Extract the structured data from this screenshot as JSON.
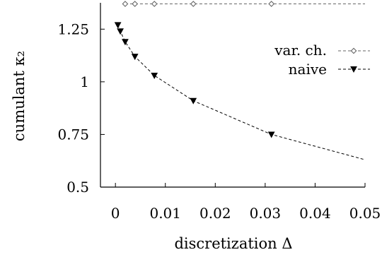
{
  "chart_data": {
    "type": "line",
    "xlabel": "discretization Δ",
    "ylabel": "cumulant κ₂",
    "xlim": [
      -0.003,
      0.05
    ],
    "ylim": [
      0.5,
      1.375
    ],
    "xticks": [
      0,
      0.01,
      0.02,
      0.03,
      0.04,
      0.05
    ],
    "xtick_labels": [
      "0",
      "0.01",
      "0.02",
      "0.03",
      "0.04",
      "0.05"
    ],
    "yticks": [
      0.5,
      0.75,
      1,
      1.25
    ],
    "ytick_labels": [
      "0.5",
      "0.75",
      "1",
      "1.25"
    ],
    "legend_position": "top-right",
    "grid": false,
    "series": [
      {
        "name": "var. ch.",
        "marker": "open-diamond",
        "color": "#666666",
        "points": [
          [
            0.00195,
            1.37
          ],
          [
            0.0039,
            1.37
          ],
          [
            0.0078,
            1.37
          ],
          [
            0.0156,
            1.37
          ],
          [
            0.03125,
            1.37
          ]
        ],
        "line": [
          [
            0.00195,
            1.37
          ],
          [
            0.05,
            1.37
          ]
        ]
      },
      {
        "name": "naive",
        "marker": "filled-down-triangle",
        "color": "#000000",
        "points": [
          [
            0.00049,
            1.27
          ],
          [
            0.00098,
            1.24
          ],
          [
            0.00195,
            1.19
          ],
          [
            0.0039,
            1.12
          ],
          [
            0.0078,
            1.03
          ],
          [
            0.0156,
            0.91
          ],
          [
            0.03125,
            0.75
          ]
        ],
        "line": [
          [
            0.00049,
            1.27
          ],
          [
            0.00098,
            1.24
          ],
          [
            0.00195,
            1.19
          ],
          [
            0.0039,
            1.12
          ],
          [
            0.0078,
            1.03
          ],
          [
            0.0156,
            0.91
          ],
          [
            0.03125,
            0.75
          ],
          [
            0.05,
            0.63
          ]
        ]
      }
    ]
  }
}
